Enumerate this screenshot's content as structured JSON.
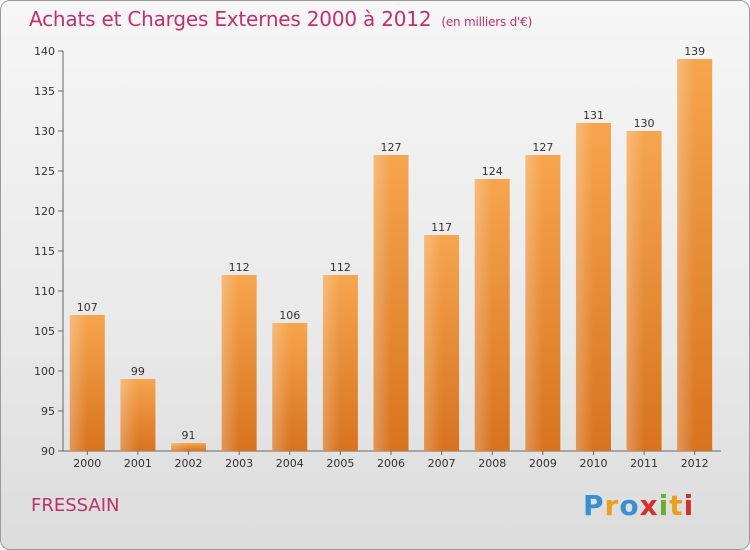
{
  "header": {
    "title": "Achats et Charges Externes 2000 à 2012",
    "subtitle": "(en milliers d'€)"
  },
  "footer": {
    "commune": "FRESSAIN",
    "logo_text": "Proxiti"
  },
  "colors": {
    "title": "#c0306a",
    "bar_light": "#f6a54e",
    "bar_dark": "#d8731e"
  },
  "chart_data": {
    "type": "bar",
    "title": "Achats et Charges Externes 2000 à 2012",
    "subtitle": "(en milliers d'€)",
    "categories": [
      "2000",
      "2001",
      "2002",
      "2003",
      "2004",
      "2005",
      "2006",
      "2007",
      "2008",
      "2009",
      "2010",
      "2011",
      "2012"
    ],
    "values": [
      107,
      99,
      91,
      112,
      106,
      112,
      127,
      117,
      124,
      127,
      131,
      130,
      139
    ],
    "ylim": [
      90,
      140
    ],
    "yticks": [
      90,
      95,
      100,
      105,
      110,
      115,
      120,
      125,
      130,
      135,
      140
    ],
    "grid": false,
    "data_labels": true
  }
}
